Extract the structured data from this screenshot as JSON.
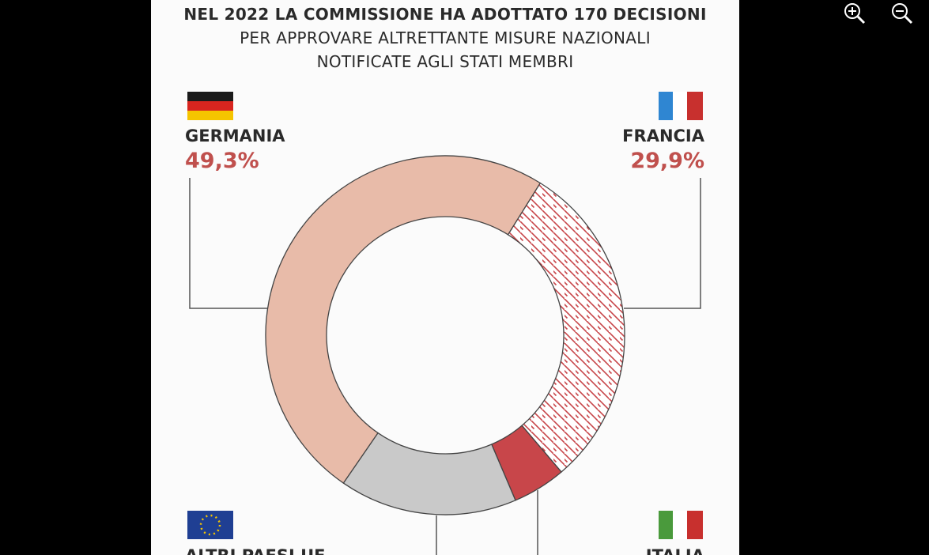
{
  "chart_data": {
    "type": "donut",
    "title": [
      "NEL 2022 LA COMMISSIONE HA ADOTTATO 170 DECISIONI",
      "PER APPROVARE ALTRETTANTE MISURE NAZIONALI",
      "NOTIFICATE AGLI STATI MEMBRI"
    ],
    "categories": [
      "FRANCIA",
      "ITALIA",
      "ALTRI PAESI UE",
      "GERMANIA"
    ],
    "values": [
      29.9,
      4.8,
      16.0,
      49.3
    ],
    "value_labels": [
      "29,9%",
      null,
      null,
      "49,3%"
    ],
    "colors": [
      "#c8464a",
      "#c8464a",
      "#c9c9c9",
      "#e8bba9"
    ],
    "hatch": [
      true,
      false,
      false,
      false
    ]
  }
}
